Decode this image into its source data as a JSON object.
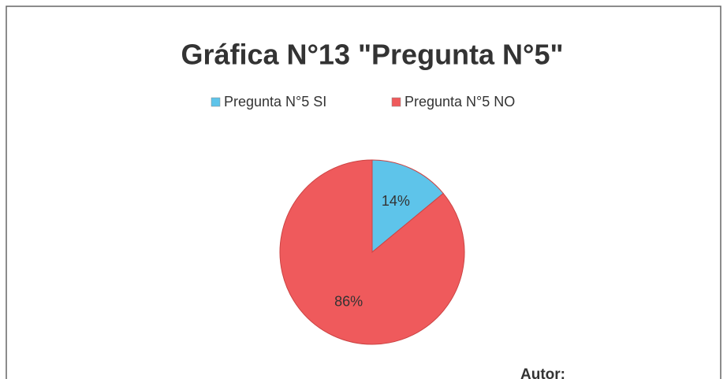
{
  "chart_data": {
    "type": "pie",
    "title": "Gráfica N°13 \"Pregunta N°5\"",
    "categories": [
      "Pregunta N°5 SI",
      "Pregunta N°5 NO"
    ],
    "values": [
      14,
      86
    ],
    "value_labels": [
      "14%",
      "86%"
    ],
    "colors": [
      "#5ec4ea",
      "#ef5a5c"
    ],
    "legend": "top",
    "annotation": "Autor:"
  }
}
